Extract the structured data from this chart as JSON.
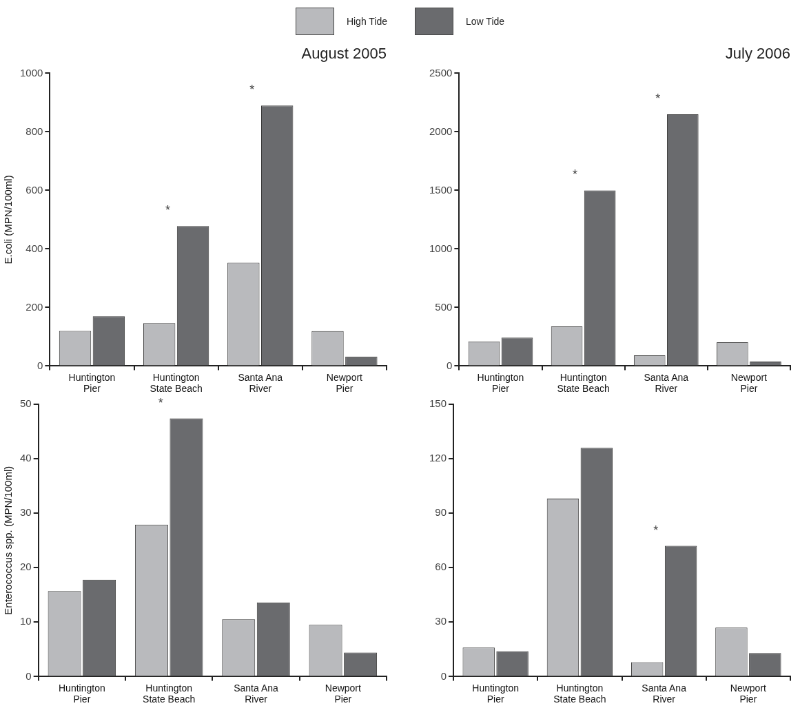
{
  "chart_data": [
    {
      "type": "bar",
      "title": "August 2005",
      "ylabel": "E.coli (MPN/100ml)",
      "categories": [
        "Huntington Pier",
        "Huntington State Beach",
        "Santa Ana River",
        "Newport Pier"
      ],
      "series": [
        {
          "name": "High Tide",
          "color": "#b9babd",
          "values": [
            120,
            146,
            353,
            119
          ]
        },
        {
          "name": "Low Tide",
          "color": "#6a6b6e",
          "values": [
            170,
            478,
            890,
            32
          ]
        }
      ],
      "ylim": [
        0,
        1000
      ],
      "yticks": [
        0,
        200,
        400,
        600,
        800,
        1000
      ],
      "legend": "top",
      "annotations": [
        {
          "text": "*",
          "x": "Huntington State Beach",
          "y": 478
        },
        {
          "text": "*",
          "x": "Santa Ana River",
          "y": 890
        }
      ]
    },
    {
      "type": "bar",
      "title": "July 2006",
      "categories": [
        "Huntington Pier",
        "Huntington State Beach",
        "Santa Ana River",
        "Newport Pier"
      ],
      "series": [
        {
          "color": "#b9babd",
          "values": [
            209,
            338,
            91,
            203
          ]
        },
        {
          "color": "#6a6b6e",
          "values": [
            242,
            1500,
            2150,
            37
          ]
        }
      ],
      "ylim": [
        0,
        2500
      ],
      "yticks": [
        0,
        500,
        1000,
        1500,
        2000,
        2500
      ],
      "annotations": [
        {
          "text": "*",
          "x": "Huntington State Beach",
          "y": 1500
        },
        {
          "text": "*",
          "x": "Santa Ana River",
          "y": 2150
        }
      ]
    },
    {
      "type": "bar",
      "ylabel": "Enterococcus spp. (MPN/100ml)",
      "categories": [
        "Huntington Pier",
        "Huntington State Beach",
        "Santa Ana River",
        "Newport Pier"
      ],
      "series": [
        {
          "color": "#b9babd",
          "values": [
            15.7,
            27.9,
            10.5,
            9.5
          ]
        },
        {
          "color": "#6a6b6e",
          "values": [
            17.8,
            47.4,
            13.6,
            4.4
          ]
        }
      ],
      "ylim": [
        0,
        50
      ],
      "yticks": [
        0,
        10,
        20,
        30,
        40,
        50
      ],
      "annotations": [
        {
          "text": "*",
          "x": "Huntington State Beach",
          "y": 47.4
        }
      ]
    },
    {
      "type": "bar",
      "categories": [
        "Huntington Pier",
        "Huntington State Beach",
        "Santa Ana River",
        "Newport Pier"
      ],
      "series": [
        {
          "color": "#b9babd",
          "values": [
            16,
            98,
            7.9,
            27
          ]
        },
        {
          "color": "#6a6b6e",
          "values": [
            14,
            126,
            72,
            13
          ]
        }
      ],
      "ylim": [
        0,
        150
      ],
      "yticks": [
        0,
        30,
        60,
        90,
        120,
        150
      ],
      "annotations": [
        {
          "text": "*",
          "x": "Santa Ana River",
          "y": 72
        }
      ]
    }
  ]
}
